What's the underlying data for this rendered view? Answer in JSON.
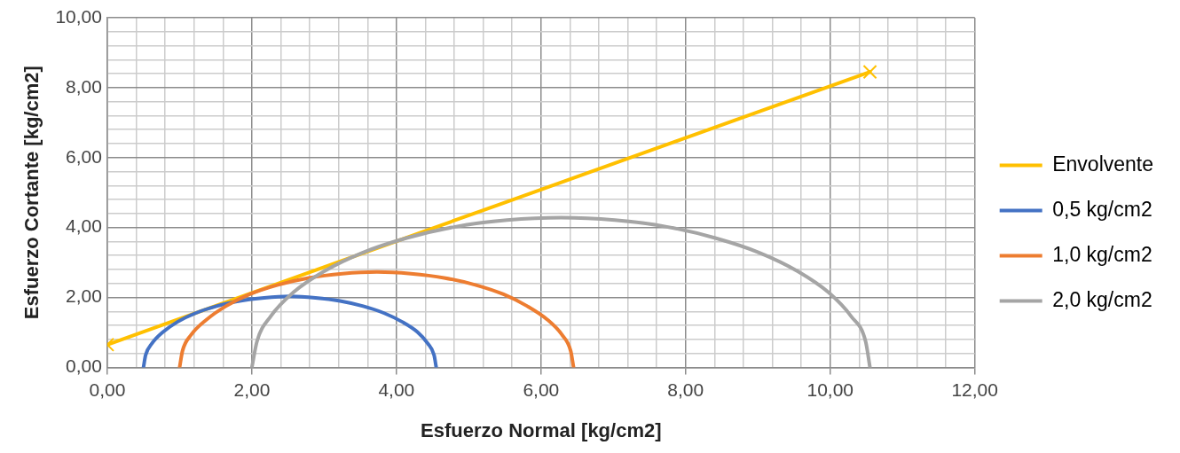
{
  "chart_data": {
    "type": "line",
    "xlabel": "Esfuerzo Normal [kg/cm2]",
    "ylabel": "Esfuerzo Cortante [kg/cm2]",
    "xlim": [
      0,
      12
    ],
    "ylim": [
      0,
      10
    ],
    "xticks": [
      {
        "value": 0,
        "label": "0,00"
      },
      {
        "value": 0.4,
        "label": null
      },
      {
        "value": 0.8,
        "label": null
      },
      {
        "value": 1.2,
        "label": null
      },
      {
        "value": 1.6,
        "label": null
      },
      {
        "value": 2,
        "label": "2,00"
      },
      {
        "value": 2.4,
        "label": null
      },
      {
        "value": 2.8,
        "label": null
      },
      {
        "value": 3.2,
        "label": null
      },
      {
        "value": 3.6,
        "label": null
      },
      {
        "value": 4,
        "label": "4,00"
      },
      {
        "value": 4.4,
        "label": null
      },
      {
        "value": 4.8,
        "label": null
      },
      {
        "value": 5.2,
        "label": null
      },
      {
        "value": 5.6,
        "label": null
      },
      {
        "value": 6,
        "label": "6,00"
      },
      {
        "value": 6.4,
        "label": null
      },
      {
        "value": 6.8,
        "label": null
      },
      {
        "value": 7.2,
        "label": null
      },
      {
        "value": 7.6,
        "label": null
      },
      {
        "value": 8,
        "label": "8,00"
      },
      {
        "value": 8.4,
        "label": null
      },
      {
        "value": 8.8,
        "label": null
      },
      {
        "value": 9.2,
        "label": null
      },
      {
        "value": 9.6,
        "label": null
      },
      {
        "value": 10,
        "label": "10,00"
      },
      {
        "value": 10.4,
        "label": null
      },
      {
        "value": 10.8,
        "label": null
      },
      {
        "value": 11.2,
        "label": null
      },
      {
        "value": 11.6,
        "label": null
      },
      {
        "value": 12,
        "label": "12,00"
      }
    ],
    "yticks": [
      {
        "value": 0,
        "label": "0,00"
      },
      {
        "value": 0.4,
        "label": null
      },
      {
        "value": 0.8,
        "label": null
      },
      {
        "value": 1.2,
        "label": null
      },
      {
        "value": 1.6,
        "label": null
      },
      {
        "value": 2,
        "label": "2,00"
      },
      {
        "value": 2.4,
        "label": null
      },
      {
        "value": 2.8,
        "label": null
      },
      {
        "value": 3.2,
        "label": null
      },
      {
        "value": 3.6,
        "label": null
      },
      {
        "value": 4,
        "label": "4,00"
      },
      {
        "value": 4.4,
        "label": null
      },
      {
        "value": 4.8,
        "label": null
      },
      {
        "value": 5.2,
        "label": null
      },
      {
        "value": 5.6,
        "label": null
      },
      {
        "value": 6,
        "label": "6,00"
      },
      {
        "value": 6.4,
        "label": null
      },
      {
        "value": 6.8,
        "label": null
      },
      {
        "value": 7.2,
        "label": null
      },
      {
        "value": 7.6,
        "label": null
      },
      {
        "value": 8,
        "label": "8,00"
      },
      {
        "value": 8.4,
        "label": null
      },
      {
        "value": 8.8,
        "label": null
      },
      {
        "value": 9.2,
        "label": null
      },
      {
        "value": 9.6,
        "label": null
      },
      {
        "value": 10,
        "label": "10,00"
      }
    ],
    "grid": true,
    "legend": "right",
    "line_style": "solid",
    "series": [
      {
        "name": "Envolvente",
        "color": "#ffc000",
        "marker": "cross",
        "x": [
          0,
          10.55
        ],
        "values": [
          0.65,
          8.45
        ]
      },
      {
        "name": "0,5 kg/cm2",
        "color": "#4472c4",
        "marker": "none",
        "x": [
          0.5,
          0.53,
          0.62,
          0.77,
          0.97,
          1.22,
          1.51,
          1.83,
          2.17,
          2.53,
          2.88,
          3.22,
          3.54,
          3.83,
          4.08,
          4.29,
          4.43,
          4.52,
          4.55
        ],
        "values": [
          0,
          0.35,
          0.69,
          1.01,
          1.3,
          1.55,
          1.75,
          1.9,
          1.99,
          2.03,
          1.99,
          1.9,
          1.75,
          1.55,
          1.3,
          1.01,
          0.69,
          0.35,
          0
        ]
      },
      {
        "name": "1,0 kg/cm2",
        "color": "#ed7d31",
        "marker": "none",
        "x": [
          1.0,
          1.04,
          1.16,
          1.37,
          1.64,
          1.97,
          2.36,
          2.79,
          3.25,
          3.73,
          4.2,
          4.66,
          5.09,
          5.48,
          5.81,
          6.09,
          6.29,
          6.41,
          6.45
        ],
        "values": [
          0,
          0.47,
          0.93,
          1.36,
          1.75,
          2.09,
          2.36,
          2.56,
          2.68,
          2.73,
          2.68,
          2.56,
          2.36,
          2.09,
          1.75,
          1.36,
          0.93,
          0.47,
          0
        ]
      },
      {
        "name": "2,0 kg/cm2",
        "color": "#a5a5a5",
        "marker": "none",
        "x": [
          2.0,
          2.07,
          2.26,
          2.57,
          3.0,
          3.53,
          4.14,
          4.81,
          5.53,
          6.28,
          7.02,
          7.74,
          8.41,
          9.02,
          9.55,
          9.98,
          10.29,
          10.49,
          10.55
        ],
        "values": [
          0,
          0.74,
          1.46,
          2.14,
          2.75,
          3.28,
          3.7,
          4.02,
          4.21,
          4.28,
          4.21,
          4.02,
          3.7,
          3.28,
          2.75,
          2.14,
          1.46,
          0.74,
          0
        ]
      }
    ]
  }
}
